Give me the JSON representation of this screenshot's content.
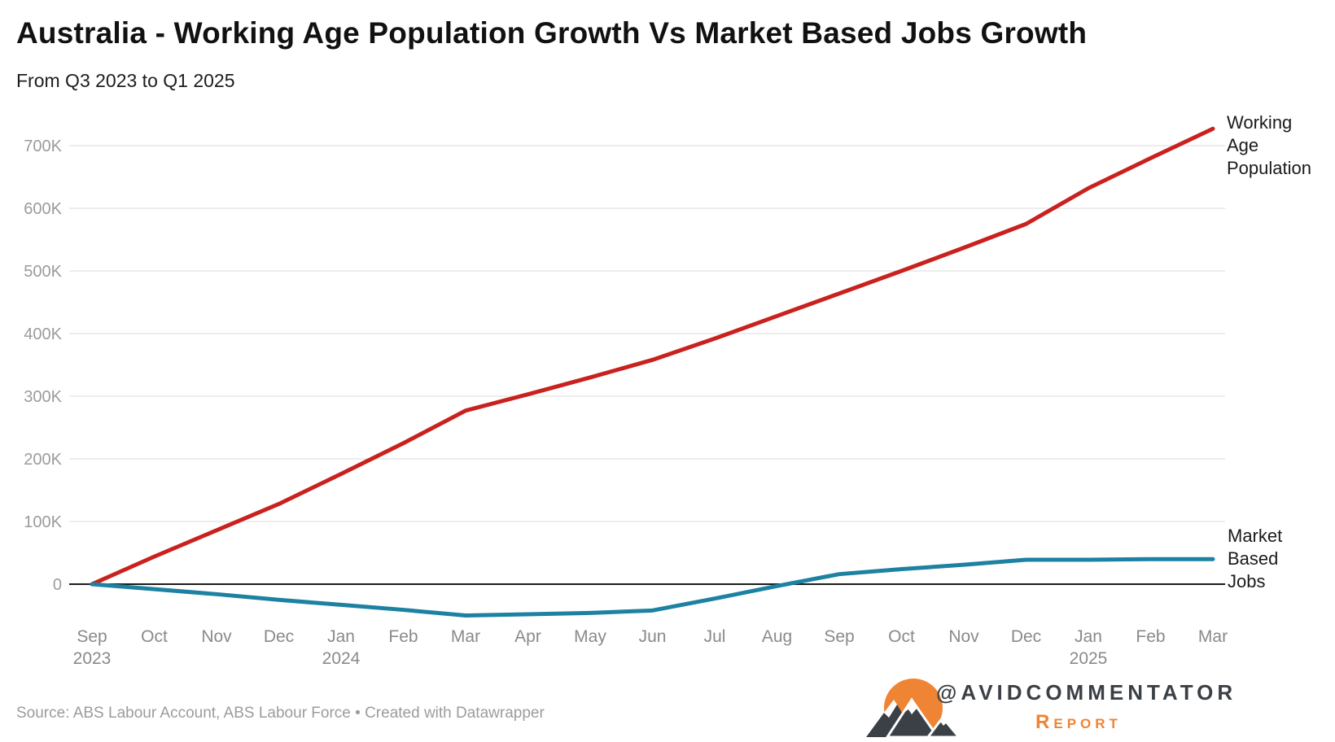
{
  "header": {
    "title": "Australia - Working Age Population Growth Vs Market Based Jobs Growth",
    "subtitle": "From Q3 2023 to Q1 2025"
  },
  "footer": {
    "source": "Source: ABS Labour Account, ABS Labour Force • Created with Datawrapper"
  },
  "branding": {
    "handle": "@AVIDCOMMENTATOR",
    "report": "Report",
    "accent_color": "#ee8434",
    "dark_color": "#3b4046",
    "logo_icon": "sun-mountains-icon"
  },
  "chart_data": {
    "type": "line",
    "title": "Australia - Working Age Population Growth Vs Market Based Jobs Growth",
    "subtitle": "From Q3 2023 to Q1 2025",
    "x": [
      "Sep",
      "Oct",
      "Nov",
      "Dec",
      "Jan",
      "Feb",
      "Mar",
      "Apr",
      "May",
      "Jun",
      "Jul",
      "Aug",
      "Sep",
      "Oct",
      "Nov",
      "Dec",
      "Jan",
      "Feb",
      "Mar"
    ],
    "x_year_marks": [
      {
        "index": 0,
        "year": "2023"
      },
      {
        "index": 4,
        "year": "2024"
      },
      {
        "index": 16,
        "year": "2025"
      }
    ],
    "series": [
      {
        "name": "Working Age Population",
        "label": "Working\nAge\nPopulation",
        "color": "#c9211e",
        "values": [
          0,
          44000,
          86000,
          128000,
          176000,
          225000,
          277000,
          303000,
          330000,
          358000,
          392000,
          428000,
          464000,
          500000,
          537000,
          575000,
          632000,
          680000,
          727000
        ]
      },
      {
        "name": "Market Based Jobs",
        "label": "Market\nBased\nJobs",
        "color": "#1d81a2",
        "values": [
          0,
          -8000,
          -16000,
          -25000,
          -33000,
          -41000,
          -50000,
          -48000,
          -46000,
          -42000,
          -23000,
          -3000,
          16000,
          24000,
          31000,
          39000,
          39000,
          40000,
          40000
        ]
      }
    ],
    "yticks": [
      0,
      100000,
      200000,
      300000,
      400000,
      500000,
      600000,
      700000
    ],
    "ytick_labels": [
      "0",
      "100K",
      "200K",
      "300K",
      "400K",
      "500K",
      "600K",
      "700K"
    ],
    "ylim": [
      -62000,
      745000
    ],
    "grid": "horizontal",
    "legend_position": "right-edge-annotations",
    "zero_line_color": "#1a1a1a",
    "gridline_color": "#e7e7e7"
  }
}
